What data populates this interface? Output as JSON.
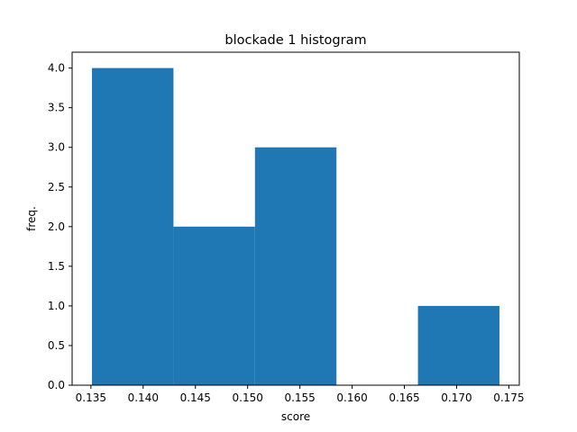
{
  "chart_data": {
    "type": "bar",
    "title": "blockade 1 histogram",
    "xlabel": "score",
    "ylabel": "freq.",
    "bins": [
      {
        "start": 0.1351,
        "end": 0.1429,
        "value": 4
      },
      {
        "start": 0.1429,
        "end": 0.1507,
        "value": 2
      },
      {
        "start": 0.1507,
        "end": 0.1585,
        "value": 3
      },
      {
        "start": 0.1585,
        "end": 0.1663,
        "value": 0
      },
      {
        "start": 0.1663,
        "end": 0.1741,
        "value": 1
      }
    ],
    "xlim": [
      0.1332,
      0.176
    ],
    "ylim": [
      0.0,
      4.2
    ],
    "x_ticks": [
      "0.135",
      "0.140",
      "0.145",
      "0.150",
      "0.155",
      "0.160",
      "0.165",
      "0.170",
      "0.175"
    ],
    "y_ticks": [
      "0.0",
      "0.5",
      "1.0",
      "1.5",
      "2.0",
      "2.5",
      "3.0",
      "3.5",
      "4.0"
    ],
    "bar_color": "#1f77b4",
    "grid": false,
    "legend": "none"
  }
}
